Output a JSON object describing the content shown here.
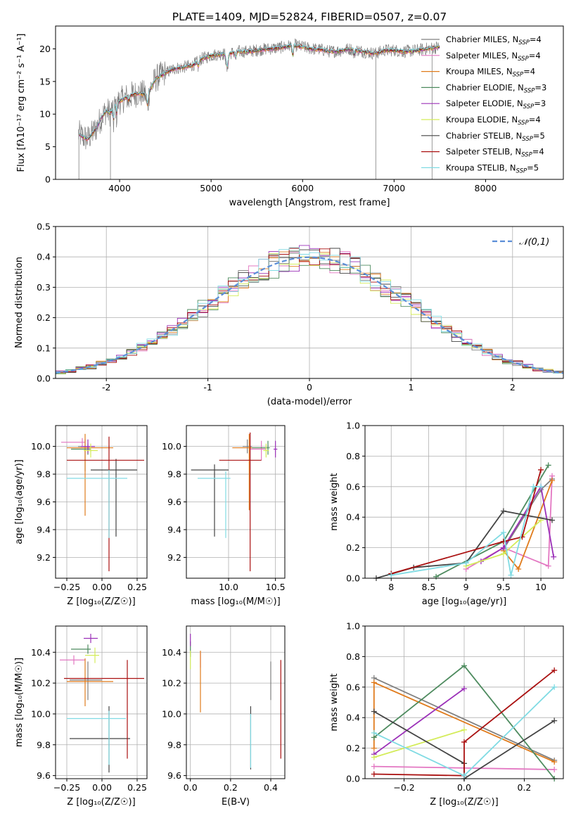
{
  "title": "PLATE=1409, MJD=52824, FIBERID=0507, z=0.07",
  "colors": {
    "Chabrier MILES": "#808080",
    "Salpeter MILES": "#e377c2",
    "Kroupa MILES": "#e07b1c",
    "Chabrier ELODIE": "#4e8b5f",
    "Salpeter ELODIE": "#9b30b8",
    "Kroupa ELODIE": "#d4ec5a",
    "Chabrier STELIB": "#444444",
    "Salpeter STELIB": "#aa1111",
    "Kroupa STELIB": "#80dbe3",
    "gaussian": "#5b8ed8",
    "grid": "#b0b0b0"
  },
  "chart_data": [
    {
      "id": "spectrum",
      "type": "line",
      "title": "PLATE=1409, MJD=52824, FIBERID=0507, z=0.07",
      "xlabel": "wavelength [Angstrom, rest frame]",
      "ylabel": "Flux [fλ10⁻¹⁷ erg cm⁻² s⁻¹ A⁻¹]",
      "xlim": [
        3300,
        8850
      ],
      "ylim": [
        0,
        23.5
      ],
      "xticks": [
        4000,
        5000,
        6000,
        7000,
        8000
      ],
      "yticks": [
        0,
        5,
        10,
        15,
        20
      ],
      "grid": false,
      "legend_position": "upper-right",
      "x": [
        3550,
        3600,
        3650,
        3700,
        3750,
        3800,
        3850,
        3900,
        3950,
        4000,
        4100,
        4200,
        4300,
        4400,
        4500,
        4600,
        4700,
        4800,
        4900,
        5000,
        5100,
        5200,
        5300,
        5400,
        5500,
        5600,
        5700,
        5800,
        5900,
        6000,
        6100,
        6200,
        6300,
        6400,
        6500,
        6600,
        6700,
        6800,
        6900,
        7000,
        7100,
        7200,
        7300,
        7400,
        7500
      ],
      "series": [
        {
          "name": "Chabrier MILES, N_SSP=4",
          "role": "data"
        },
        {
          "name": "Salpeter MILES, N_SSP=4",
          "role": "model"
        },
        {
          "name": "Kroupa MILES, N_SSP=4",
          "role": "model"
        },
        {
          "name": "Chabrier ELODIE, N_SSP=3",
          "role": "model"
        },
        {
          "name": "Salpeter ELODIE, N_SSP=3",
          "role": "model"
        },
        {
          "name": "Kroupa ELODIE, N_SSP=4",
          "role": "model"
        },
        {
          "name": "Chabrier STELIB, N_SSP=5",
          "role": "model"
        },
        {
          "name": "Salpeter STELIB, N_SSP=4",
          "role": "model"
        },
        {
          "name": "Kroupa STELIB, N_SSP=5",
          "role": "model"
        }
      ],
      "model_flux": [
        7,
        6.5,
        6.2,
        7.0,
        8.0,
        9.5,
        10.5,
        10.2,
        11.5,
        12.0,
        12.8,
        13.2,
        13.0,
        15.5,
        16.3,
        17.0,
        17.2,
        17.5,
        18.5,
        19.0,
        19.2,
        19.3,
        19.6,
        19.6,
        19.8,
        20.0,
        20.1,
        20.3,
        20.6,
        20.3,
        20.0,
        19.9,
        19.6,
        19.7,
        20.0,
        19.8,
        19.5,
        19.3,
        19.8,
        19.8,
        19.6,
        19.7,
        19.9,
        20.1,
        20.3
      ],
      "data_flux": [
        7,
        4.5,
        6,
        8,
        6,
        12,
        9,
        8,
        10.5,
        13,
        11.5,
        14,
        12,
        17,
        15,
        18.5,
        16,
        18,
        19.5,
        17,
        20,
        17.5,
        20,
        19,
        21,
        18.5,
        21,
        19.5,
        22,
        19,
        21,
        19,
        20.5,
        18.5,
        20.5,
        20,
        19,
        19.5,
        20,
        20.5,
        18.5,
        20.5,
        19,
        20.5,
        20.5
      ]
    },
    {
      "id": "residuals",
      "type": "line",
      "xlabel": "(data-model)/error",
      "ylabel": "Normed distribution",
      "xlim": [
        -2.5,
        2.5
      ],
      "ylim": [
        0,
        0.5
      ],
      "xticks": [
        -2,
        -1,
        0,
        1,
        2
      ],
      "yticks": [
        0.0,
        0.1,
        0.2,
        0.3,
        0.4,
        0.5
      ],
      "grid": true,
      "legend_position": "upper-right",
      "legend": "𝒩(0,1)",
      "bin_width": 0.1,
      "envelope": "gaussian N(0,1)"
    },
    {
      "id": "age-vs-Z",
      "type": "scatter",
      "xlabel": "Z [log₁₀(Z/Z☉)]",
      "ylabel": "age  [log₁₀(age/yr)]",
      "xlim": [
        -0.33,
        0.32
      ],
      "ylim": [
        9.05,
        10.15
      ],
      "xticks": [
        -0.25,
        0.0,
        0.25
      ],
      "xticklabels": [
        "−0.25",
        "0.00",
        "0.25"
      ],
      "yticks": [
        9.2,
        9.4,
        9.6,
        9.8,
        10.0
      ],
      "grid": true,
      "points": [
        {
          "series": "Chabrier MILES",
          "x": -0.12,
          "y": 10.0,
          "xerr": [
            0.05,
            0.05
          ],
          "yerr": [
            0.18,
            0.05
          ]
        },
        {
          "series": "Salpeter MILES",
          "x": -0.14,
          "y": 10.03,
          "xerr": [
            0.15,
            0.02
          ],
          "yerr": [
            0.03,
            0.03
          ]
        },
        {
          "series": "Kroupa MILES",
          "x": -0.12,
          "y": 9.99,
          "xerr": [
            0.13,
            0.2
          ],
          "yerr": [
            0.49,
            0.1
          ]
        },
        {
          "series": "Chabrier ELODIE",
          "x": -0.1,
          "y": 9.98,
          "xerr": [
            0.12,
            0.02
          ],
          "yerr": [
            0.04,
            0.04
          ]
        },
        {
          "series": "Salpeter ELODIE",
          "x": -0.1,
          "y": 10.0,
          "xerr": [
            0.05,
            0.05
          ],
          "yerr": [
            0.05,
            0.05
          ]
        },
        {
          "series": "Kroupa ELODIE",
          "x": -0.08,
          "y": 9.97,
          "xerr": [
            0.05,
            0.05
          ],
          "yerr": [
            0.05,
            0.05
          ]
        },
        {
          "series": "Chabrier STELIB",
          "x": 0.1,
          "y": 9.83,
          "xerr": [
            0.18,
            0.15
          ],
          "yerr": [
            0.48,
            0.08
          ]
        },
        {
          "series": "Salpeter STELIB",
          "x": 0.05,
          "y": 9.9,
          "xerr": [
            0.3,
            0.25
          ],
          "yerr": [
            0.8,
            0.17
          ]
        },
        {
          "series": "Kroupa STELIB",
          "x": 0.05,
          "y": 9.77,
          "xerr": [
            0.3,
            0.13
          ],
          "yerr": [
            0.43,
            0.06
          ]
        }
      ]
    },
    {
      "id": "age-vs-mass",
      "type": "scatter",
      "xlabel": "mass [log₁₀(M/M☉)]",
      "xlim": [
        9.55,
        10.6
      ],
      "ylim": [
        9.05,
        10.15
      ],
      "xticks": [
        10.0,
        10.5
      ],
      "xticklabels": [
        "10.0",
        "10.5"
      ],
      "yticks": [
        9.2,
        9.4,
        9.6,
        9.8,
        10.0
      ],
      "grid": true,
      "points": [
        {
          "series": "Chabrier MILES",
          "x": 10.2,
          "y": 10.0,
          "xerr": [
            0.05,
            0.05
          ],
          "yerr": [
            0.05,
            0.05
          ]
        },
        {
          "series": "Salpeter MILES",
          "x": 10.35,
          "y": 9.98,
          "xerr": [
            0.12,
            0.05
          ],
          "yerr": [
            0.08,
            0.06
          ]
        },
        {
          "series": "Kroupa MILES",
          "x": 10.22,
          "y": 9.99,
          "xerr": [
            0.18,
            0.2
          ],
          "yerr": [
            0.45,
            0.1
          ]
        },
        {
          "series": "Chabrier ELODIE",
          "x": 10.42,
          "y": 9.99,
          "xerr": [
            0.17,
            0.02
          ],
          "yerr": [
            0.05,
            0.05
          ]
        },
        {
          "series": "Salpeter ELODIE",
          "x": 10.5,
          "y": 9.98,
          "xerr": [
            0.02,
            0.02
          ],
          "yerr": [
            0.06,
            0.06
          ]
        },
        {
          "series": "Kroupa ELODIE",
          "x": 10.4,
          "y": 9.97,
          "xerr": [
            0.03,
            0.03
          ],
          "yerr": [
            0.05,
            0.05
          ]
        },
        {
          "series": "Chabrier STELIB",
          "x": 9.85,
          "y": 9.83,
          "xerr": [
            0.25,
            0.15
          ],
          "yerr": [
            0.48,
            0.04
          ]
        },
        {
          "series": "Salpeter STELIB",
          "x": 10.23,
          "y": 9.9,
          "xerr": [
            0.33,
            0.12
          ],
          "yerr": [
            0.8,
            0.2
          ]
        },
        {
          "series": "Kroupa STELIB",
          "x": 9.97,
          "y": 9.77,
          "xerr": [
            0.3,
            0.05
          ],
          "yerr": [
            0.43,
            0.05
          ]
        }
      ]
    },
    {
      "id": "mass-weight-vs-age",
      "type": "line",
      "xlabel": "age  [log₁₀(age/yr)]",
      "ylabel": "mass weight",
      "xlim": [
        7.65,
        10.3
      ],
      "ylim": [
        0,
        1.0
      ],
      "xticks": [
        8.0,
        8.5,
        9.0,
        9.5,
        10.0
      ],
      "yticks": [
        0.0,
        0.2,
        0.4,
        0.6,
        0.8,
        1.0
      ],
      "grid": true,
      "series": [
        {
          "name": "Chabrier MILES",
          "x": [
            9.5,
            10.0,
            10.15
          ],
          "y": [
            0.19,
            0.58,
            0.65
          ]
        },
        {
          "name": "Salpeter MILES",
          "x": [
            9.0,
            9.5,
            10.1,
            10.15
          ],
          "y": [
            0.06,
            0.2,
            0.08,
            0.67
          ]
        },
        {
          "name": "Kroupa MILES",
          "x": [
            9.5,
            9.7,
            10.15
          ],
          "y": [
            0.18,
            0.06,
            0.64
          ]
        },
        {
          "name": "Chabrier ELODIE",
          "x": [
            8.6,
            9.5,
            10.1
          ],
          "y": [
            0.01,
            0.24,
            0.74
          ]
        },
        {
          "name": "Salpeter ELODIE",
          "x": [
            9.2,
            9.5,
            10.0,
            10.17
          ],
          "y": [
            0.11,
            0.2,
            0.6,
            0.14
          ]
        },
        {
          "name": "Kroupa ELODIE",
          "x": [
            9.0,
            9.5,
            10.0
          ],
          "y": [
            0.08,
            0.16,
            0.38
          ]
        },
        {
          "name": "Chabrier STELIB",
          "x": [
            7.8,
            8.3,
            9.0,
            9.5,
            10.15
          ],
          "y": [
            0.0,
            0.07,
            0.1,
            0.44,
            0.38
          ]
        },
        {
          "name": "Salpeter STELIB",
          "x": [
            8.0,
            9.5,
            9.75,
            10.0
          ],
          "y": [
            0.03,
            0.24,
            0.27,
            0.71
          ]
        },
        {
          "name": "Kroupa STELIB",
          "x": [
            8.0,
            9.0,
            9.5,
            9.6,
            9.9,
            10.0
          ],
          "y": [
            0.02,
            0.1,
            0.3,
            0.02,
            0.6,
            0.6
          ]
        }
      ]
    },
    {
      "id": "mass-vs-Z",
      "type": "scatter",
      "xlabel": "Z [log₁₀(Z/Z☉)]",
      "ylabel": "mass [log₁₀(M/M☉)]",
      "xlim": [
        -0.33,
        0.32
      ],
      "ylim": [
        9.58,
        10.57
      ],
      "xticks": [
        -0.25,
        0.0,
        0.25
      ],
      "xticklabels": [
        "−0.25",
        "0.00",
        "0.25"
      ],
      "yticks": [
        9.6,
        9.8,
        10.0,
        10.2,
        10.4
      ],
      "grid": true,
      "points": [
        {
          "series": "Chabrier MILES",
          "x": -0.1,
          "y": 10.22,
          "xerr": [
            0.13,
            0.1
          ],
          "yerr": [
            0.13,
            0.12
          ]
        },
        {
          "series": "Salpeter MILES",
          "x": -0.2,
          "y": 10.35,
          "xerr": [
            0.1,
            0.08
          ],
          "yerr": [
            0.03,
            0.03
          ]
        },
        {
          "series": "Kroupa MILES",
          "x": -0.12,
          "y": 10.21,
          "xerr": [
            0.13,
            0.2
          ],
          "yerr": [
            0.16,
            0.15
          ]
        },
        {
          "series": "Chabrier ELODIE",
          "x": -0.1,
          "y": 10.42,
          "xerr": [
            0.12,
            0.02
          ],
          "yerr": [
            0.03,
            0.03
          ]
        },
        {
          "series": "Salpeter ELODIE",
          "x": -0.08,
          "y": 10.49,
          "xerr": [
            0.05,
            0.05
          ],
          "yerr": [
            0.03,
            0.03
          ]
        },
        {
          "series": "Kroupa ELODIE",
          "x": -0.05,
          "y": 10.38,
          "xerr": [
            0.07,
            0.03
          ],
          "yerr": [
            0.05,
            0.05
          ]
        },
        {
          "series": "Chabrier STELIB",
          "x": 0.05,
          "y": 9.84,
          "xerr": [
            0.28,
            0.15
          ],
          "yerr": [
            0.22,
            0.21
          ]
        },
        {
          "series": "Salpeter STELIB",
          "x": 0.18,
          "y": 10.23,
          "xerr": [
            0.45,
            0.12
          ],
          "yerr": [
            0.52,
            0.12
          ]
        },
        {
          "series": "Kroupa STELIB",
          "x": 0.05,
          "y": 9.97,
          "xerr": [
            0.3,
            0.12
          ],
          "yerr": [
            0.3,
            0.05
          ]
        }
      ]
    },
    {
      "id": "mass-vs-ebv",
      "type": "scatter",
      "xlabel": "E(B-V)",
      "xlim": [
        -0.02,
        0.47
      ],
      "ylim": [
        9.58,
        10.57
      ],
      "xticks": [
        0.0,
        0.2,
        0.4
      ],
      "xticklabels": [
        "0.0",
        "0.2",
        "0.4"
      ],
      "yticks": [
        9.6,
        9.8,
        10.0,
        10.2,
        10.4
      ],
      "grid": true,
      "points": [
        {
          "series": "Chabrier MILES",
          "x": 0.4,
          "y": 10.22,
          "yerr": [
            0.13,
            0.12
          ]
        },
        {
          "series": "Salpeter MILES",
          "x": 0.05,
          "y": 10.35,
          "yerr": [
            0.05,
            0.05
          ]
        },
        {
          "series": "Kroupa MILES",
          "x": 0.05,
          "y": 10.21,
          "yerr": [
            0.2,
            0.2
          ]
        },
        {
          "series": "Chabrier ELODIE",
          "x": 0.0,
          "y": 10.42,
          "yerr": [
            0.05,
            0.05
          ]
        },
        {
          "series": "Salpeter ELODIE",
          "x": 0.0,
          "y": 10.49,
          "yerr": [
            0.05,
            0.03
          ]
        },
        {
          "series": "Kroupa ELODIE",
          "x": 0.0,
          "y": 10.36,
          "yerr": [
            0.07,
            0.05
          ]
        },
        {
          "series": "Chabrier STELIB",
          "x": 0.3,
          "y": 9.84,
          "yerr": [
            0.2,
            0.21
          ]
        },
        {
          "series": "Salpeter STELIB",
          "x": 0.45,
          "y": 10.03,
          "yerr": [
            0.32,
            0.32
          ]
        },
        {
          "series": "Kroupa STELIB",
          "x": 0.3,
          "y": 9.85,
          "yerr": [
            0.2,
            0.15
          ]
        }
      ]
    },
    {
      "id": "mass-weight-vs-Z",
      "type": "line",
      "xlabel": "Z [log₁₀(Z/Z☉)]",
      "ylabel": "mass weight",
      "xlim": [
        -0.33,
        0.33
      ],
      "ylim": [
        0,
        1.0
      ],
      "xticks": [
        -0.2,
        0.0,
        0.2
      ],
      "xticklabels": [
        "−0.2",
        "0.0",
        "0.2"
      ],
      "yticks": [
        0.0,
        0.2,
        0.4,
        0.6,
        0.8,
        1.0
      ],
      "grid": true,
      "series": [
        {
          "name": "Chabrier MILES",
          "x": [
            -0.3,
            0.3
          ],
          "y": [
            0.66,
            0.12
          ]
        },
        {
          "name": "Salpeter MILES",
          "x": [
            -0.3,
            0.3
          ],
          "y": [
            0.08,
            0.06
          ]
        },
        {
          "name": "Kroupa MILES",
          "x": [
            -0.3,
            -0.3,
            0.3
          ],
          "y": [
            0.2,
            0.63,
            0.11
          ]
        },
        {
          "name": "Chabrier ELODIE",
          "x": [
            -0.3,
            0.0,
            0.3
          ],
          "y": [
            0.27,
            0.74,
            0.0
          ]
        },
        {
          "name": "Salpeter ELODIE",
          "x": [
            -0.3,
            0.0
          ],
          "y": [
            0.16,
            0.59
          ]
        },
        {
          "name": "Kroupa ELODIE",
          "x": [
            -0.3,
            0.0
          ],
          "y": [
            0.14,
            0.32
          ]
        },
        {
          "name": "Chabrier STELIB",
          "x": [
            -0.3,
            0.0,
            0.0,
            0.3
          ],
          "y": [
            0.44,
            0.1,
            0.0,
            0.38
          ]
        },
        {
          "name": "Salpeter STELIB",
          "x": [
            -0.3,
            0.0,
            0.0,
            0.3
          ],
          "y": [
            0.03,
            0.02,
            0.24,
            0.71
          ]
        },
        {
          "name": "Kroupa STELIB",
          "x": [
            -0.3,
            0.0,
            0.3
          ],
          "y": [
            0.3,
            0.02,
            0.6
          ]
        }
      ]
    }
  ]
}
